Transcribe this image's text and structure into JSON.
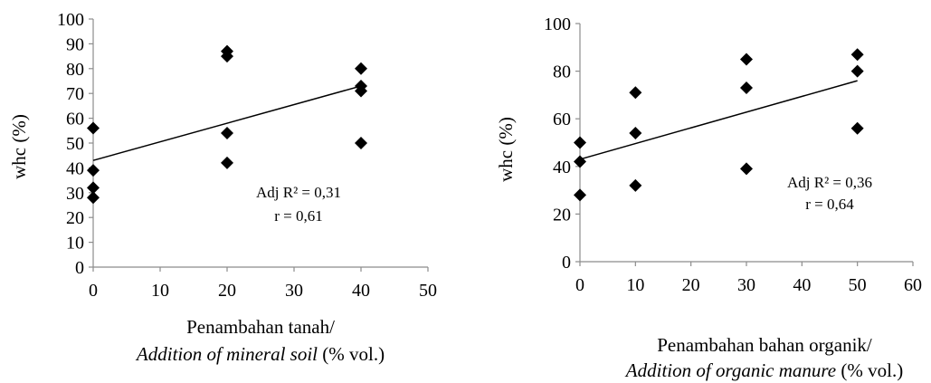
{
  "chart_data": [
    {
      "type": "scatter",
      "ylabel": "whc (%)",
      "xlabel_line1": "Penambahan tanah/",
      "xlabel_line2_italic": "Addition of mineral soil",
      "xlabel_line2_rest": " (% vol.)",
      "xlim": [
        0,
        50
      ],
      "ylim": [
        0,
        100
      ],
      "x_ticks": [
        0,
        10,
        20,
        30,
        40,
        50
      ],
      "y_ticks": [
        0,
        10,
        20,
        30,
        40,
        50,
        60,
        70,
        80,
        90,
        100
      ],
      "points": [
        {
          "x": 0,
          "y": 56
        },
        {
          "x": 0,
          "y": 39
        },
        {
          "x": 0,
          "y": 32
        },
        {
          "x": 0,
          "y": 28
        },
        {
          "x": 20,
          "y": 87
        },
        {
          "x": 20,
          "y": 85
        },
        {
          "x": 20,
          "y": 54
        },
        {
          "x": 20,
          "y": 42
        },
        {
          "x": 40,
          "y": 80
        },
        {
          "x": 40,
          "y": 73
        },
        {
          "x": 40,
          "y": 71
        },
        {
          "x": 40,
          "y": 50
        }
      ],
      "trendline": {
        "x": [
          0,
          40
        ],
        "y": [
          43,
          73
        ]
      },
      "annotation_line1": "Adj R² = 0,31",
      "annotation_line2": "r = 0,61"
    },
    {
      "type": "scatter",
      "ylabel": "whc (%)",
      "xlabel_line1": "Penambahan bahan organik/",
      "xlabel_line2_italic": "Addition of organic manure",
      "xlabel_line2_rest": "  (% vol.)",
      "xlim": [
        0,
        60
      ],
      "ylim": [
        0,
        100
      ],
      "x_ticks": [
        0,
        10,
        20,
        30,
        40,
        50,
        60
      ],
      "y_ticks": [
        0,
        20,
        40,
        60,
        80,
        100
      ],
      "points": [
        {
          "x": 0,
          "y": 50
        },
        {
          "x": 0,
          "y": 42
        },
        {
          "x": 0,
          "y": 28
        },
        {
          "x": 10,
          "y": 71
        },
        {
          "x": 10,
          "y": 54
        },
        {
          "x": 10,
          "y": 32
        },
        {
          "x": 30,
          "y": 85
        },
        {
          "x": 30,
          "y": 73
        },
        {
          "x": 30,
          "y": 39
        },
        {
          "x": 50,
          "y": 87
        },
        {
          "x": 50,
          "y": 80
        },
        {
          "x": 50,
          "y": 56
        }
      ],
      "trendline": {
        "x": [
          0,
          50
        ],
        "y": [
          43,
          76
        ]
      },
      "annotation_line1": "Adj R² = 0,36",
      "annotation_line2": "r = 0,64"
    }
  ]
}
